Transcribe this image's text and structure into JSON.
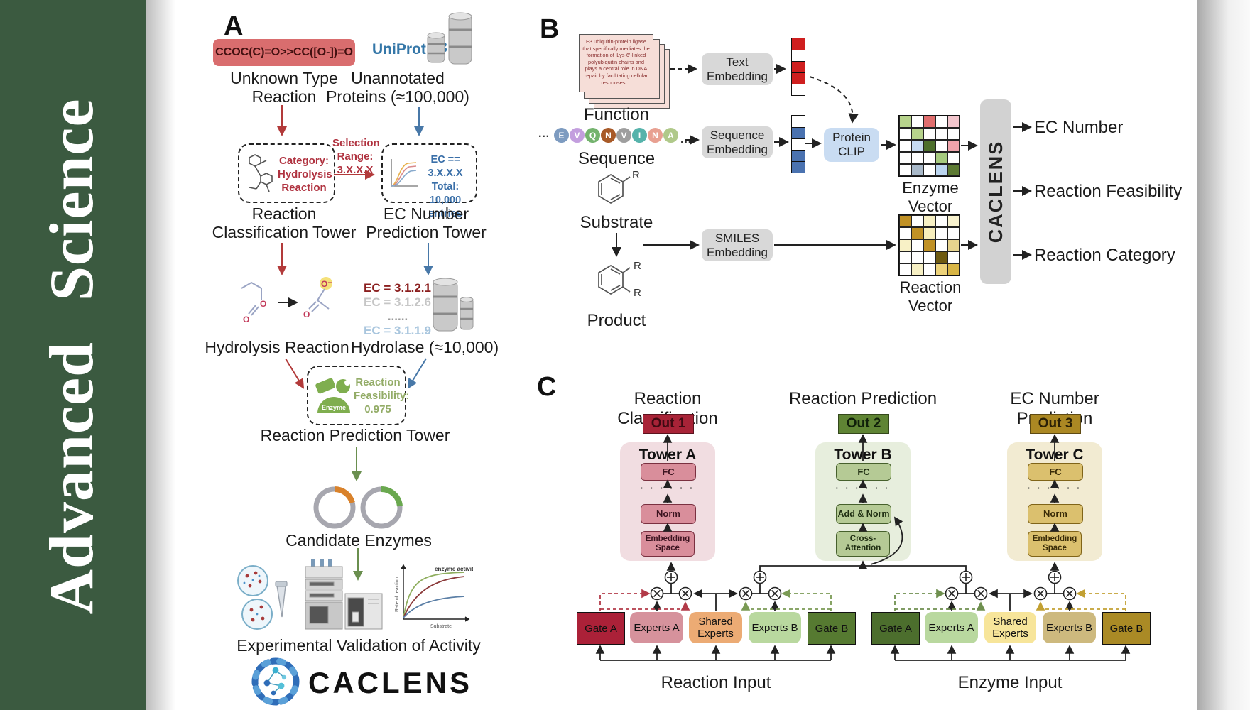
{
  "sidebar": {
    "journal": "Advanced Science"
  },
  "colors": {
    "sidebar_green": "#3b5a40",
    "smiles_box": "#d96d6e",
    "uniprot_blue": "#3577a8",
    "red_arrow": "#b23a3a",
    "blue_arrow": "#4878a8",
    "green_arrow": "#6a8f4f",
    "gray_box": "#d8d8d8",
    "clip_blue": "#c9dcf2",
    "out1": "#a82337",
    "out2": "#5f8434",
    "out3": "#ab8823",
    "towerA_bg": "#f1dde1",
    "towerB_bg": "#e7eedd",
    "towerC_bg": "#f2ebd2",
    "gateA_left": "#ab2138",
    "expertsA_left": "#d6929c",
    "shared_left": "#ecab74",
    "expertsB_left": "#b9d89f",
    "gateB_left": "#567a31",
    "gateA_right": "#4c6e2d",
    "expertsA_right": "#b9d89f",
    "shared_right": "#f7e59a",
    "expertsB_right": "#cdb97e",
    "gateB_right": "#aa8a25"
  },
  "panelA": {
    "label": "A",
    "smiles": "CCOC(C)=O>>CC([O-])=O",
    "unknown_reaction": "Unknown Type Reaction",
    "uniprot": "UniProt",
    "unannotated": "Unannotated Proteins (≈100,000)",
    "category_lines": [
      "Category:",
      "Hydrolysis",
      "Reaction"
    ],
    "selection_lines": [
      "Selection",
      "Range:",
      "3.X.X.X"
    ],
    "ec_box_lines": [
      "EC == 3.X.X.X",
      "Total: 10,000",
      "entries"
    ],
    "tower1": "Reaction Classification Tower",
    "tower2": "EC Number Prediction Tower",
    "ec_list": [
      {
        "text": "EC = 3.1.2.1",
        "color": "#8b1f1f"
      },
      {
        "text": "EC = 3.1.2.6",
        "color": "#c6c6c6"
      },
      {
        "text": "......",
        "color": "#9a9a9a"
      },
      {
        "text": "EC = 3.1.1.9",
        "color": "#a9c6de"
      }
    ],
    "hydrolysis": "Hydrolysis Reaction",
    "hydrolase": "Hydrolase (≈10,000)",
    "enzyme_badge": "Enzyme",
    "feasibility_lines": [
      "Reaction",
      "Feasibility:",
      "0.975"
    ],
    "tower3": "Reaction Prediction Tower",
    "candidates": "Candidate Enzymes",
    "validation": "Experimental Validation of Activity",
    "graph": {
      "title": "enzyme activity",
      "ylabel": "Rate of reaction",
      "xlabel": "Substrate"
    },
    "logo_text": "CACLENS"
  },
  "panelB": {
    "label": "B",
    "function_card": "E3 ubiquitin-protein ligase that specifically mediates the formation of 'Lys-6'-linked polyubiquitin chains and plays a central role in DNA repair by facilitating cellular responses....",
    "function_label": "Function",
    "ellipsis_left": "···",
    "ellipsis_right": "···",
    "residues": [
      {
        "ch": "E",
        "color": "#7d9bc0"
      },
      {
        "ch": "V",
        "color": "#c39ede"
      },
      {
        "ch": "Q",
        "color": "#74b36e"
      },
      {
        "ch": "N",
        "color": "#a85a28"
      },
      {
        "ch": "V",
        "color": "#9e9e9e"
      },
      {
        "ch": "I",
        "color": "#56b3ab"
      },
      {
        "ch": "N",
        "color": "#e8a091"
      },
      {
        "ch": "A",
        "color": "#b0c98a"
      }
    ],
    "sequence_label": "Sequence",
    "substrate_label": "Substrate",
    "product_label": "Product",
    "r_label": "R",
    "text_embedding": "Text Embedding",
    "sequence_embedding": "Sequence Embedding",
    "smiles_embedding": "SMILES Embedding",
    "protein_clip": "Protein CLIP",
    "enzyme_vector_label": "Enzyme Vector",
    "reaction_vector_label": "Reaction Vector",
    "caclens_label": "CACLENS",
    "outputs": [
      "EC Number",
      "Reaction Feasibility",
      "Reaction Category"
    ],
    "text_vector_cells": [
      "#cf1f1f",
      "#ffffff",
      "#cf1f1f",
      "#cf1f1f",
      "#ffffff"
    ],
    "seq_vector_cells": [
      "#ffffff",
      "#4a72b0",
      "#ffffff",
      "#4a72b0",
      "#4a72b0"
    ],
    "enzyme_grid_cells": [
      "#b7d38c",
      "#ffffff",
      "#e06e6e",
      "#ffffff",
      "#f3c6cd",
      "#ffffff",
      "#b7d38c",
      "#ffffff",
      "#ffffff",
      "#ffffff",
      "#ffffff",
      "#c6daf1",
      "#4d6f2b",
      "#ffffff",
      "#efa3ab",
      "#ffffff",
      "#ffffff",
      "#ffffff",
      "#a6cb7e",
      "#ffffff",
      "#ffffff",
      "#a9b9c9",
      "#ffffff",
      "#bcd6f0",
      "#5d7a33"
    ],
    "reaction_grid_cells": [
      "#c09125",
      "#ffffff",
      "#f7f0c4",
      "#ffffff",
      "#f9f3cf",
      "#ffffff",
      "#c09125",
      "#f7eebc",
      "#ffffff",
      "#ffffff",
      "#f8f1c6",
      "#ffffff",
      "#c09125",
      "#ffffff",
      "#e7d48e",
      "#ffffff",
      "#ffffff",
      "#ffffff",
      "#6e5a10",
      "#ffffff",
      "#ffffff",
      "#f7f0c4",
      "#ffffff",
      "#ecd27a",
      "#d8b545"
    ]
  },
  "panelC": {
    "label": "C",
    "columns": [
      {
        "title": "Reaction Classification",
        "out": "Out 1",
        "tower": "Tower A",
        "fc": "FC",
        "dots": "· · · · · ·",
        "mid": "Norm",
        "bottom": "Embedding Space"
      },
      {
        "title": "Reaction Prediction",
        "out": "Out 2",
        "tower": "Tower B",
        "fc": "FC",
        "dots": "· · · · · ·",
        "mid": "Add & Norm",
        "bottom": "Cross-Attention"
      },
      {
        "title": "EC Number Prediction",
        "out": "Out 3",
        "tower": "Tower C",
        "fc": "FC",
        "dots": "· · · · · ·",
        "mid": "Norm",
        "bottom": "Embedding Space"
      }
    ],
    "groups": [
      {
        "gate_a": "Gate A",
        "experts_a": "Experts A",
        "shared": "Shared Experts",
        "experts_b": "Experts B",
        "gate_b": "Gate B",
        "input": "Reaction Input"
      },
      {
        "gate_a": "Gate A",
        "experts_a": "Experts A",
        "shared": "Shared Experts",
        "experts_b": "Experts B",
        "gate_b": "Gate B",
        "input": "Enzyme Input"
      }
    ]
  }
}
